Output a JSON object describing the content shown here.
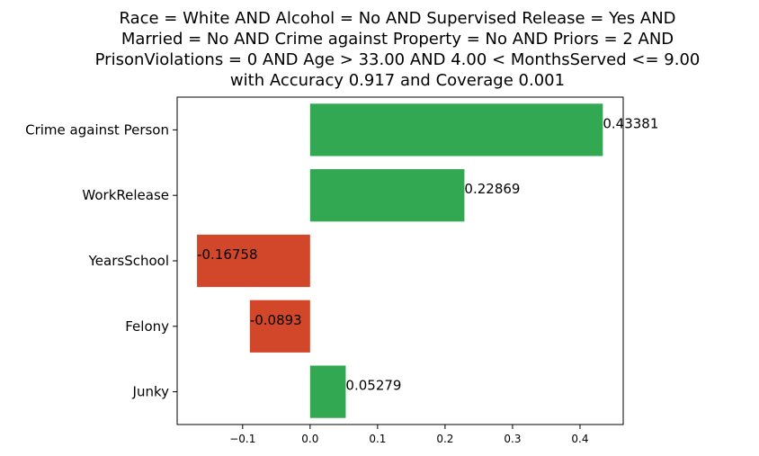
{
  "chart_data": {
    "type": "bar",
    "orientation": "horizontal",
    "title_lines": [
      "Race = White AND Alcohol = No AND Supervised Release = Yes AND",
      "Married = No AND Crime against Property = No AND Priors = 2 AND",
      "PrisonViolations = 0 AND Age > 33.00 AND 4.00 < MonthsServed <= 9.00",
      "with Accuracy 0.917 and Coverage 0.001"
    ],
    "categories": [
      "Crime against Person",
      "WorkRelease",
      "YearsSchool",
      "Felony",
      "Junky"
    ],
    "values": [
      0.43381,
      0.22869,
      -0.16758,
      -0.0893,
      0.05279
    ],
    "value_labels": [
      "0.43381",
      "0.22869",
      "-0.16758",
      "-0.0893",
      "0.05279"
    ],
    "xlim": [
      -0.197,
      0.464
    ],
    "xticks": [
      -0.1,
      0.0,
      0.1,
      0.2,
      0.3,
      0.4
    ],
    "xtick_labels": [
      "−0.1",
      "0.0",
      "0.1",
      "0.2",
      "0.3",
      "0.4"
    ],
    "grid": false,
    "colors": {
      "positive": "#33a852",
      "negative": "#d2472a"
    }
  }
}
